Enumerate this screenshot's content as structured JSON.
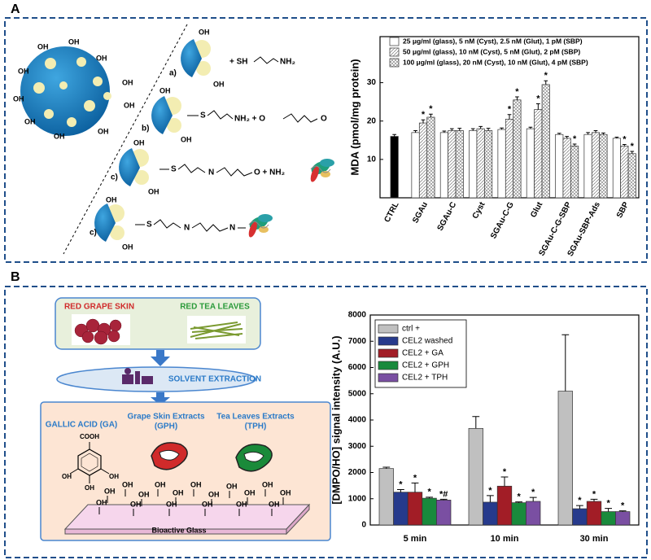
{
  "panels": [
    "A",
    "B"
  ],
  "diagram_a": {
    "hydroxyl": "OH",
    "reactions": [
      {
        "label": "a)",
        "parts": [
          "+ SH",
          "NH₂"
        ]
      },
      {
        "label": "b)",
        "parts": [
          "S",
          "NH₂ + O",
          "O"
        ]
      },
      {
        "label": "c)",
        "parts": [
          "S",
          "N",
          "O + NH₂"
        ]
      },
      {
        "label": "c)",
        "parts": [
          "S",
          "N",
          "N"
        ]
      }
    ]
  },
  "diagram_b": {
    "sources": [
      "RED GRAPE SKIN",
      "RED TEA LEAVES"
    ],
    "step": "SOLVENT EXTRACTION",
    "products": [
      [
        "GALLIC ACID (GA)"
      ],
      [
        "Grape Skin Extracts",
        "(GPH)"
      ],
      [
        "Tea Leaves Extracts",
        "(TPH)"
      ]
    ],
    "carboxyl": "COOH",
    "hydroxyl": "OH",
    "substrate": "Bioactive Glass"
  },
  "chart_data": [
    {
      "type": "bar",
      "ylabel": "MDA (pmol/mg protein)",
      "categories": [
        "CTRL",
        "SGAu",
        "SGAu-C",
        "Cyst",
        "SGAu-C-G",
        "Glut",
        "SGAu-C-G-SBP",
        "SGAu-SBP-Ads",
        "SBP"
      ],
      "ylim": [
        0,
        42
      ],
      "yticks": [
        10,
        20,
        30
      ],
      "legend": "top",
      "series": [
        {
          "name": "25 μg/ml (glass), 5 nM (Cyst), 2.5 nM (Glut), 1 pM (SBP)",
          "color": "#ffffff",
          "values": [
            null,
            17,
            17,
            17.5,
            17.8,
            18,
            16.5,
            16.5,
            15.5
          ],
          "errors": [
            null,
            0.5,
            0.4,
            0.5,
            0.4,
            0.4,
            0.3,
            0.5,
            0.3
          ]
        },
        {
          "name": "50 μg/ml (glass), 10 nM (Cyst), 5 nM (Glut), 2 pM (SBP)",
          "color": "#ffffff",
          "pattern": "hatch",
          "values": [
            null,
            19.5,
            17.5,
            18,
            20.5,
            23,
            15.5,
            17,
            13.5
          ],
          "errors": [
            null,
            0.8,
            0.5,
            0.6,
            1.2,
            1.5,
            0.5,
            0.5,
            0.4
          ],
          "annotations": [
            null,
            "*",
            null,
            null,
            "*",
            "*",
            null,
            null,
            "*"
          ]
        },
        {
          "name": "100 μg/ml (glass), 20 nM (Cyst), 10 nM (Glut), 4 pM (SBP)",
          "color": "#ffffff",
          "pattern": "crosshatch",
          "values": [
            null,
            21,
            17.5,
            17.5,
            25.5,
            29.5,
            13.5,
            16.5,
            11.5
          ],
          "errors": [
            null,
            0.8,
            0.6,
            0.6,
            0.8,
            1,
            0.5,
            0.4,
            0.6
          ],
          "annotations": [
            null,
            "*",
            null,
            null,
            "*",
            "*",
            "*",
            null,
            "*"
          ]
        },
        {
          "color": "#000000",
          "values": [
            16,
            null,
            null,
            null,
            null,
            null,
            null,
            null,
            null
          ],
          "errors": [
            0.5,
            null,
            null,
            null,
            null,
            null,
            null,
            null,
            null
          ]
        }
      ]
    },
    {
      "type": "bar",
      "ylabel": "[DMPO/HO] signal intensity (A.U.)",
      "categories": [
        "5 min",
        "10 min",
        "30 min"
      ],
      "ylim": [
        0,
        8000
      ],
      "yticks": [
        0,
        1000,
        2000,
        3000,
        4000,
        5000,
        6000,
        7000,
        8000
      ],
      "legend": "upper left",
      "series": [
        {
          "name": "ctrl +",
          "color": "#c0c0c0",
          "values": [
            2150,
            3680,
            5100
          ],
          "errors": [
            50,
            450,
            2150
          ]
        },
        {
          "name": "CEL2 washed",
          "color": "#263a8c",
          "values": [
            1250,
            870,
            620
          ],
          "errors": [
            100,
            250,
            120
          ],
          "annotations": [
            "*",
            "*",
            "*"
          ]
        },
        {
          "name": "CEL2 + GA",
          "color": "#a21d26",
          "values": [
            1250,
            1480,
            900
          ],
          "errors": [
            350,
            350,
            80
          ],
          "annotations": [
            "*",
            "*",
            "*"
          ]
        },
        {
          "name": "CEL2 + GPH",
          "color": "#198a3c",
          "values": [
            1020,
            850,
            510
          ],
          "errors": [
            40,
            30,
            120
          ],
          "annotations": [
            "*",
            "*",
            "*"
          ]
        },
        {
          "name": "CEL2 + TPH",
          "color": "#7a4fa2",
          "values": [
            950,
            900,
            510
          ],
          "errors": [
            30,
            150,
            30
          ],
          "annotations": [
            "*#",
            "*",
            "*"
          ]
        }
      ]
    }
  ]
}
